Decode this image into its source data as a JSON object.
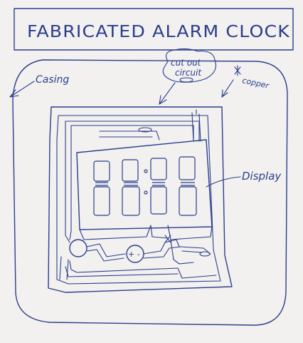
{
  "title": "FABRICATED ALARM CLOCK",
  "labels": {
    "casing": "Casing",
    "cutout_line1": "cut out",
    "cutout_line2": "circuit",
    "copper": "copper",
    "display": "Display",
    "battery_sign": "+ -"
  },
  "colors": {
    "paper": "#f2f1ef",
    "ink": "#2a3e8c"
  }
}
